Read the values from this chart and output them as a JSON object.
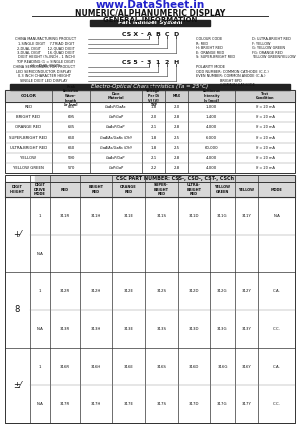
{
  "title_url": "www.DataSheet.in",
  "title_main": "NUMERIC/ALPHANUMERIC DISPLAY",
  "title_sub": "GENERAL INFORMATION",
  "bg_color": "#e8e8e0",
  "url_color": "#2222cc",
  "eo_table_data": [
    [
      "RED",
      "655",
      "GaAsP/GaAs",
      "1.8",
      "2.0",
      "1,000",
      "If = 20 mA"
    ],
    [
      "BRIGHT RED",
      "695",
      "GaP/GaP",
      "2.0",
      "2.8",
      "1,400",
      "If = 20 mA"
    ],
    [
      "ORANGE RED",
      "635",
      "GaAsP/GaP",
      "2.1",
      "2.8",
      "4,000",
      "If = 20 mA"
    ],
    [
      "SUPER-BRIGHT RED",
      "660",
      "GaAlAs/GaAs (DH)",
      "1.8",
      "2.5",
      "6,000",
      "If = 20 mA"
    ],
    [
      "ULTRA-BRIGHT RED",
      "660",
      "GaAlAs/GaAs (DH)",
      "1.8",
      "2.5",
      "60,000",
      "If = 20 mA"
    ],
    [
      "YELLOW",
      "590",
      "GaAsP/GaP",
      "2.1",
      "2.8",
      "4,000",
      "If = 20 mA"
    ],
    [
      "YELLOW GREEN",
      "570",
      "GaP/GaP",
      "2.2",
      "2.8",
      "4,000",
      "If = 20 mA"
    ]
  ],
  "g1_rows": [
    [
      "1",
      "311R",
      "311H",
      "311E",
      "311S",
      "311D",
      "311G",
      "311Y",
      "N/A"
    ],
    [
      "N/A",
      "",
      "",
      "",
      "",
      "",
      "",
      "",
      ""
    ]
  ],
  "g2_rows": [
    [
      "1",
      "312R",
      "312H",
      "312E",
      "312S",
      "312D",
      "312G",
      "312Y",
      "C.A."
    ],
    [
      "N/A",
      "313R",
      "313H",
      "313E",
      "313S",
      "313D",
      "313G",
      "313Y",
      "C.C."
    ]
  ],
  "g3_rows": [
    [
      "1",
      "316R",
      "316H",
      "316E",
      "316S",
      "316D",
      "316G",
      "316Y",
      "C.A."
    ],
    [
      "N/A",
      "317R",
      "317H",
      "317E",
      "317S",
      "317D",
      "317G",
      "317Y",
      "C.C."
    ]
  ]
}
